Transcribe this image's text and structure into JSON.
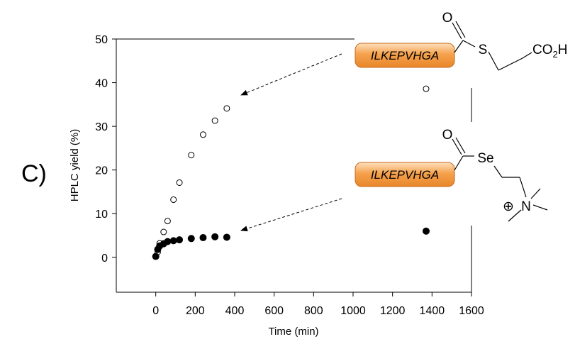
{
  "panel_label": "C)",
  "chart_data": {
    "type": "scatter",
    "xlabel": "Time (min)",
    "ylabel": "HPLC yield (%)",
    "xlim": [
      -200,
      1600
    ],
    "ylim": [
      -8,
      50
    ],
    "xticks": [
      "0",
      "200",
      "400",
      "600",
      "800",
      "1000",
      "1200",
      "1400",
      "1600"
    ],
    "yticks": [
      "0",
      "10",
      "20",
      "30",
      "40",
      "50"
    ],
    "grid": false,
    "series": [
      {
        "marker": "open-circle",
        "x": [
          0,
          10,
          20,
          40,
          60,
          90,
          120,
          180,
          240,
          300,
          360,
          1370
        ],
        "y": [
          0.2,
          1.2,
          3.2,
          5.8,
          8.3,
          13.2,
          17.1,
          23.4,
          28.1,
          31.3,
          34.1,
          38.6
        ]
      },
      {
        "marker": "filled-circle",
        "x": [
          0,
          10,
          20,
          40,
          60,
          90,
          120,
          180,
          240,
          300,
          360,
          1370
        ],
        "y": [
          0.2,
          1.8,
          2.6,
          3.1,
          3.6,
          3.8,
          4.0,
          4.3,
          4.5,
          4.7,
          4.6,
          6.0
        ]
      }
    ]
  },
  "structures": {
    "thioester": {
      "peptide": "ILKEPVHGA",
      "oxygen": "O",
      "heteroatom": "S",
      "acid_main": "CO",
      "acid_sub": "2",
      "acid_tail": "H"
    },
    "selenoester": {
      "peptide": "ILKEPVHGA",
      "oxygen": "O",
      "heteroatom": "Se",
      "charge": "⊕",
      "nitrogen": "N"
    }
  },
  "colors": {
    "peptide_box_light": "#fde0bf",
    "peptide_box_mid": "#f5a24d",
    "peptide_box_dark": "#e8862a",
    "peptide_box_stroke": "#c8691a",
    "axis": "#000000"
  }
}
